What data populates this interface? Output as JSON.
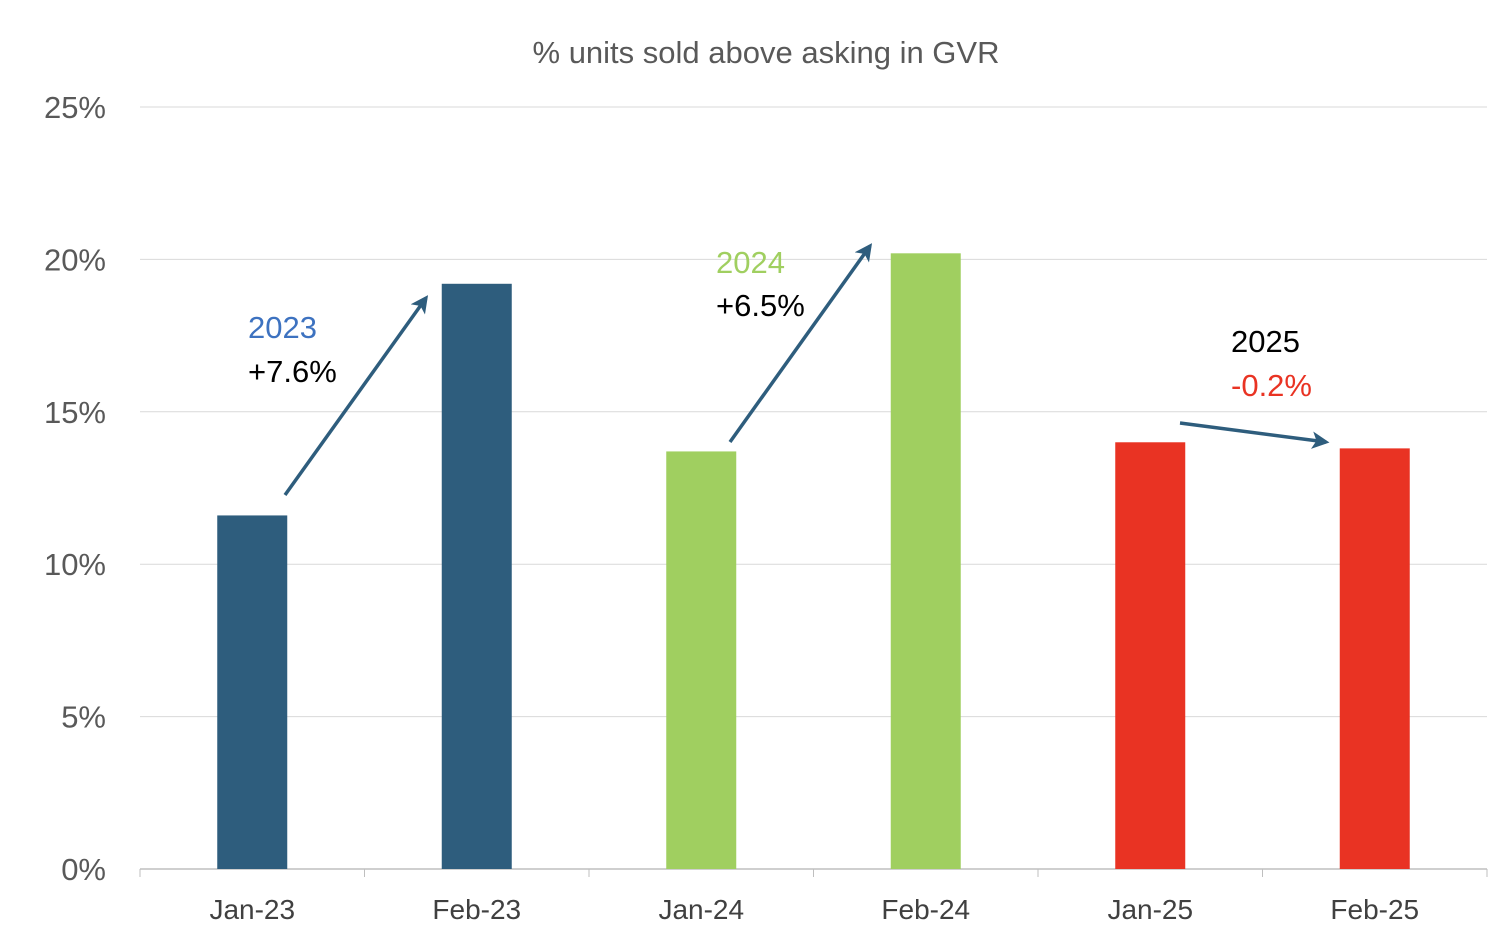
{
  "chart_data": {
    "type": "bar",
    "title": "% units sold above asking in GVR",
    "xlabel": "",
    "ylabel": "",
    "categories": [
      "Jan-23",
      "Feb-23",
      "Jan-24",
      "Feb-24",
      "Jan-25",
      "Feb-25"
    ],
    "values": [
      11.6,
      19.2,
      13.7,
      20.2,
      14.0,
      13.8
    ],
    "bar_colors": [
      "#2e5d7d",
      "#2e5d7d",
      "#a0cf60",
      "#a0cf60",
      "#e93323",
      "#e93323"
    ],
    "ylim": [
      0,
      25
    ],
    "yticks": [
      0,
      5,
      10,
      15,
      20,
      25
    ],
    "ytick_labels": [
      "0%",
      "5%",
      "10%",
      "15%",
      "20%",
      "25%"
    ],
    "grid": true,
    "legend": "none",
    "annotations": [
      {
        "year": "2023",
        "change": "+7.6%",
        "year_color": "#3d72c0",
        "change_color": "#000000",
        "from": "Jan-23",
        "to": "Feb-23"
      },
      {
        "year": "2024",
        "change": "+6.5%",
        "year_color": "#a0cf60",
        "change_color": "#000000",
        "from": "Jan-24",
        "to": "Feb-24"
      },
      {
        "year": "2025",
        "change": "-0.2%",
        "year_color": "#000000",
        "change_color": "#e93323",
        "from": "Jan-25",
        "to": "Feb-25"
      }
    ],
    "arrow_color": "#2e5d7d"
  }
}
